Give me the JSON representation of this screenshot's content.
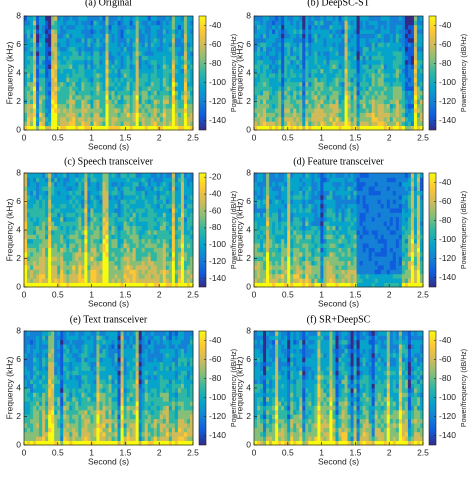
{
  "colormap": [
    "#352a87",
    "#0f5cdd",
    "#1481d6",
    "#06a4ca",
    "#2eb7a4",
    "#87bf77",
    "#d1bb59",
    "#fec832",
    "#f9fb0e"
  ],
  "chart_data": [
    {
      "type": "spectrogram",
      "title": "(a) Original",
      "xlabel": "Second (s)",
      "ylabel": "Frequency (kHz)",
      "xlim": [
        0,
        2.5
      ],
      "xticks": [
        0,
        0.5,
        1,
        1.5,
        2,
        2.5
      ],
      "ylim": [
        0,
        8
      ],
      "yticks": [
        0,
        2,
        4,
        6,
        8
      ],
      "colorbar_label": "Power/frequency (dB/Hz)",
      "clim": [
        -150,
        -30
      ],
      "cticks": [
        -40,
        -60,
        -80,
        -100,
        -120,
        -140
      ]
    },
    {
      "type": "spectrogram",
      "title": "(b) DeepSC-ST",
      "xlabel": "Second (s)",
      "ylabel": "Frequency (kHz)",
      "xlim": [
        0,
        2.5
      ],
      "xticks": [
        0,
        0.5,
        1,
        1.5,
        2,
        2.5
      ],
      "ylim": [
        0,
        8
      ],
      "yticks": [
        0,
        2,
        4,
        6,
        8
      ],
      "colorbar_label": "Power/frequency (dB/Hz)",
      "clim": [
        -150,
        -30
      ],
      "cticks": [
        -40,
        -60,
        -80,
        -100,
        -120,
        -140
      ]
    },
    {
      "type": "spectrogram",
      "title": "(c) Speech transceiver",
      "xlabel": "Second (s)",
      "ylabel": "Frequency (kHz)",
      "xlim": [
        0,
        2.5
      ],
      "xticks": [
        0,
        0.5,
        1,
        1.5,
        2,
        2.5
      ],
      "ylim": [
        0,
        8
      ],
      "yticks": [
        0,
        2,
        4,
        6,
        8
      ],
      "colorbar_label": "Power/frequency (dB/Hz)",
      "clim": [
        -150,
        -15
      ],
      "cticks": [
        -20,
        -40,
        -60,
        -80,
        -100,
        -120,
        -140
      ]
    },
    {
      "type": "spectrogram",
      "title": "(d) Feature transceiver",
      "xlabel": "Second (s)",
      "ylabel": "Frequency (kHz)",
      "xlim": [
        0,
        2.5
      ],
      "xticks": [
        0,
        0.5,
        1,
        1.5,
        2,
        2.5
      ],
      "ylim": [
        0,
        8
      ],
      "yticks": [
        0,
        2,
        4,
        6,
        8
      ],
      "colorbar_label": "Power/frequency (dB/Hz)",
      "clim": [
        -150,
        -30
      ],
      "cticks": [
        -40,
        -60,
        -80,
        -100,
        -120,
        -140
      ]
    },
    {
      "type": "spectrogram",
      "title": "(e) Text transceiver",
      "xlabel": "Second (s)",
      "ylabel": "Frequency (kHz)",
      "xlim": [
        0,
        2.5
      ],
      "xticks": [
        0,
        0.5,
        1,
        1.5,
        2,
        2.5
      ],
      "ylim": [
        0,
        8
      ],
      "yticks": [
        0,
        2,
        4,
        6,
        8
      ],
      "colorbar_label": "Power/frequency (dB/Hz)",
      "clim": [
        -150,
        -30
      ],
      "cticks": [
        -40,
        -60,
        -80,
        -100,
        -120,
        -140
      ]
    },
    {
      "type": "spectrogram",
      "title": "(f) SR+DeepSC",
      "xlabel": "Second (s)",
      "ylabel": "Frequency (kHz)",
      "xlim": [
        0,
        2.5
      ],
      "xticks": [
        0,
        0.5,
        1,
        1.5,
        2,
        2.5
      ],
      "ylim": [
        0,
        8
      ],
      "yticks": [
        0,
        2,
        4,
        6,
        8
      ],
      "colorbar_label": "Power/frequency (dB/Hz)",
      "clim": [
        -150,
        -30
      ],
      "cticks": [
        -40,
        -60,
        -80,
        -100,
        -120,
        -140
      ]
    }
  ]
}
